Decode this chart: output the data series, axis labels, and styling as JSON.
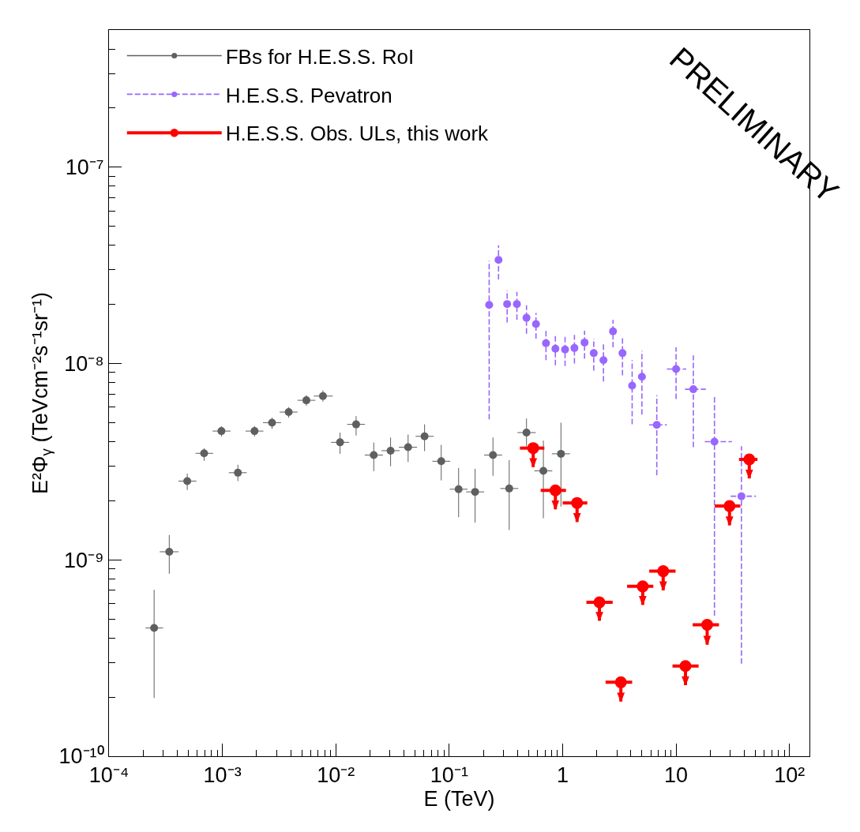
{
  "chart_data": {
    "type": "scatter",
    "xlabel": "E (TeV)",
    "ylabel": "E²Φ$_{γ}$ (TeVcm⁻²s⁻¹sr⁻¹)",
    "log": "xy",
    "xlim": [
      0.0001,
      150
    ],
    "ylim": [
      1e-10,
      5e-07
    ],
    "xticks": [
      {
        "value": 0.0001,
        "label": "10⁻⁴"
      },
      {
        "value": 0.001,
        "label": "10⁻³"
      },
      {
        "value": 0.01,
        "label": "10⁻²"
      },
      {
        "value": 0.1,
        "label": "10⁻¹"
      },
      1,
      10,
      {
        "value": 100,
        "label": "10²"
      },
      {
        "value": 0.0002,
        "label": null
      },
      {
        "value": 0.0003,
        "label": null
      },
      {
        "value": 0.0004,
        "label": null
      },
      {
        "value": 0.0005,
        "label": null
      },
      {
        "value": 0.0006,
        "label": null
      },
      {
        "value": 0.0007,
        "label": null
      },
      {
        "value": 0.0008,
        "label": null
      },
      {
        "value": 0.0009,
        "label": null
      },
      {
        "value": 0.002,
        "label": null
      },
      {
        "value": 0.003,
        "label": null
      },
      {
        "value": 0.004,
        "label": null
      },
      {
        "value": 0.005,
        "label": null
      },
      {
        "value": 0.006,
        "label": null
      },
      {
        "value": 0.007,
        "label": null
      },
      {
        "value": 0.008,
        "label": null
      },
      {
        "value": 0.009,
        "label": null
      },
      {
        "value": 0.02,
        "label": null
      },
      {
        "value": 0.03,
        "label": null
      },
      {
        "value": 0.04,
        "label": null
      },
      {
        "value": 0.05,
        "label": null
      },
      {
        "value": 0.06,
        "label": null
      },
      {
        "value": 0.07,
        "label": null
      },
      {
        "value": 0.08,
        "label": null
      },
      {
        "value": 0.09,
        "label": null
      },
      {
        "value": 0.2,
        "label": null
      },
      {
        "value": 0.3,
        "label": null
      },
      {
        "value": 0.4,
        "label": null
      },
      {
        "value": 0.5,
        "label": null
      },
      {
        "value": 0.6,
        "label": null
      },
      {
        "value": 0.7,
        "label": null
      },
      {
        "value": 0.8,
        "label": null
      },
      {
        "value": 0.9,
        "label": null
      },
      {
        "value": 2,
        "label": null
      },
      {
        "value": 3,
        "label": null
      },
      {
        "value": 4,
        "label": null
      },
      {
        "value": 5,
        "label": null
      },
      {
        "value": 6,
        "label": null
      },
      {
        "value": 7,
        "label": null
      },
      {
        "value": 8,
        "label": null
      },
      {
        "value": 9,
        "label": null
      },
      {
        "value": 20,
        "label": null
      },
      {
        "value": 30,
        "label": null
      },
      {
        "value": 40,
        "label": null
      },
      {
        "value": 50,
        "label": null
      },
      {
        "value": 60,
        "label": null
      },
      {
        "value": 70,
        "label": null
      },
      {
        "value": 80,
        "label": null
      },
      {
        "value": 90,
        "label": null
      }
    ],
    "yticks": [
      {
        "value": 1e-10,
        "label": "10⁻¹⁰"
      },
      {
        "value": 1e-09,
        "label": "10⁻⁹"
      },
      {
        "value": 1e-08,
        "label": "10⁻⁸"
      },
      {
        "value": 1e-07,
        "label": "10⁻⁷"
      },
      {
        "value": 2e-10,
        "label": null
      },
      {
        "value": 3e-10,
        "label": null
      },
      {
        "value": 4e-10,
        "label": null
      },
      {
        "value": 5e-10,
        "label": null
      },
      {
        "value": 6e-10,
        "label": null
      },
      {
        "value": 7e-10,
        "label": null
      },
      {
        "value": 8e-10,
        "label": null
      },
      {
        "value": 9e-10,
        "label": null
      },
      {
        "value": 2e-09,
        "label": null
      },
      {
        "value": 3e-09,
        "label": null
      },
      {
        "value": 4e-09,
        "label": null
      },
      {
        "value": 5e-09,
        "label": null
      },
      {
        "value": 6e-09,
        "label": null
      },
      {
        "value": 7e-09,
        "label": null
      },
      {
        "value": 8e-09,
        "label": null
      },
      {
        "value": 9e-09,
        "label": null
      },
      {
        "value": 2e-08,
        "label": null
      },
      {
        "value": 3e-08,
        "label": null
      },
      {
        "value": 4e-08,
        "label": null
      },
      {
        "value": 5e-08,
        "label": null
      },
      {
        "value": 6e-08,
        "label": null
      },
      {
        "value": 7e-08,
        "label": null
      },
      {
        "value": 8e-08,
        "label": null
      },
      {
        "value": 9e-08,
        "label": null
      },
      {
        "value": 2e-07,
        "label": null
      },
      {
        "value": 3e-07,
        "label": null
      },
      {
        "value": 4e-07,
        "label": null
      },
      {
        "value": 5e-07,
        "label": null
      }
    ],
    "legend": "top left",
    "marker": "circle",
    "annotations": [
      "PRELIMINARY"
    ],
    "series": [
      {
        "name": "FBs for H.E.S.S. RoI",
        "color": "#5f5f5f",
        "line_style": "solid",
        "x": [
          0.00025,
          0.00034,
          0.00049,
          0.00069,
          0.00098,
          0.00137,
          0.00192,
          0.00274,
          0.00384,
          0.0055,
          0.0077,
          0.0109,
          0.0151,
          0.0216,
          0.0304,
          0.0434,
          0.0606,
          0.085,
          0.121,
          0.169,
          0.243,
          0.338,
          0.48,
          0.676,
          0.966
        ],
        "values": [
          4.5e-10,
          1.1e-09,
          2.52e-09,
          3.49e-09,
          4.53e-09,
          2.78e-09,
          4.53e-09,
          5e-09,
          5.66e-09,
          6.5e-09,
          6.83e-09,
          3.97e-09,
          4.9e-09,
          3.42e-09,
          3.6e-09,
          3.75e-09,
          4.26e-09,
          3.18e-09,
          2.29e-09,
          2.22e-09,
          3.42e-09,
          2.31e-09,
          4.45e-09,
          2.84e-09,
          3.47e-09
        ],
        "errors": [
          [
            1.98e-10,
            7.04e-10
          ],
          [
            8.5e-10,
            1.34e-09
          ],
          [
            2.27e-09,
            2.75e-09
          ],
          [
            3.2e-09,
            3.7e-09
          ],
          [
            4.25e-09,
            4.8e-09
          ],
          [
            2.52e-09,
            3.05e-09
          ],
          [
            4.25e-09,
            4.8e-09
          ],
          [
            4.65e-09,
            5.3e-09
          ],
          [
            5.3e-09,
            6e-09
          ],
          [
            6.1e-09,
            6.9e-09
          ],
          [
            6.4e-09,
            7.3e-09
          ],
          [
            3.47e-09,
            4.45e-09
          ],
          [
            4.3e-09,
            5.4e-09
          ],
          [
            2.83e-09,
            3.96e-09
          ],
          [
            3e-09,
            4.2e-09
          ],
          [
            3.15e-09,
            4.35e-09
          ],
          [
            3.58e-09,
            4.9e-09
          ],
          [
            2.54e-09,
            3.85e-09
          ],
          [
            1.65e-09,
            2.94e-09
          ],
          [
            1.55e-09,
            2.91e-09
          ],
          [
            2.68e-09,
            4.2e-09
          ],
          [
            1.42e-09,
            3.22e-09
          ],
          [
            3.79e-09,
            5.25e-09
          ],
          [
            1.63e-09,
            4.05e-09
          ],
          [
            1.87e-09,
            5e-09
          ]
        ],
        "xerrors": [
          [
            0.00021,
            0.0003
          ],
          [
            0.00028,
            0.00041
          ],
          [
            0.00041,
            0.00059
          ],
          [
            0.00058,
            0.00083
          ],
          [
            0.00082,
            0.00118
          ],
          [
            0.00114,
            0.00164
          ],
          [
            0.0016,
            0.0023
          ],
          [
            0.00228,
            0.00329
          ],
          [
            0.0032,
            0.0046
          ],
          [
            0.0046,
            0.0066
          ],
          [
            0.0064,
            0.0094
          ],
          [
            0.0091,
            0.0131
          ],
          [
            0.0126,
            0.0181
          ],
          [
            0.018,
            0.026
          ],
          [
            0.0253,
            0.0365
          ],
          [
            0.036,
            0.052
          ],
          [
            0.0505,
            0.073
          ],
          [
            0.071,
            0.102
          ],
          [
            0.101,
            0.145
          ],
          [
            0.141,
            0.203
          ],
          [
            0.203,
            0.292
          ],
          [
            0.282,
            0.406
          ],
          [
            0.4,
            0.58
          ],
          [
            0.563,
            0.81
          ],
          [
            0.805,
            1.16
          ]
        ]
      },
      {
        "name": "H.E.S.S. Pevatron",
        "color": "#9966ff",
        "line_style": "dashed",
        "x": [
          0.225,
          0.272,
          0.324,
          0.395,
          0.48,
          0.582,
          0.713,
          0.863,
          1.05,
          1.27,
          1.56,
          1.88,
          2.29,
          2.78,
          3.37,
          4.1,
          5.0,
          6.76,
          10,
          14.2,
          21.8,
          37.7
        ],
        "values": [
          1.99e-08,
          3.37e-08,
          2.01e-08,
          2.01e-08,
          1.71e-08,
          1.59e-08,
          1.27e-08,
          1.19e-08,
          1.18e-08,
          1.2e-08,
          1.28e-08,
          1.13e-08,
          1.04e-08,
          1.46e-08,
          1.13e-08,
          7.72e-09,
          8.57e-09,
          4.87e-09,
          9.38e-09,
          7.4e-09,
          4e-09,
          2.11e-09
        ],
        "errors": [
          [
            5.2e-09,
            3.33e-08
          ],
          [
            2.68e-08,
            4e-08
          ],
          [
            1.62e-08,
            2.36e-08
          ],
          [
            1.67e-08,
            2.32e-08
          ],
          [
            1.42e-08,
            1.98e-08
          ],
          [
            1.34e-08,
            1.81e-08
          ],
          [
            1.04e-08,
            1.48e-08
          ],
          [
            9.8e-09,
            1.4e-08
          ],
          [
            9.7e-09,
            1.38e-08
          ],
          [
            1e-08,
            1.4e-08
          ],
          [
            1.06e-08,
            1.47e-08
          ],
          [
            9.2e-09,
            1.34e-08
          ],
          [
            8.1e-09,
            1.26e-08
          ],
          [
            1.21e-08,
            1.67e-08
          ],
          [
            8.7e-09,
            1.38e-08
          ],
          [
            4.9e-09,
            1.04e-08
          ],
          [
            5.5e-09,
            1.16e-08
          ],
          [
            2.7e-09,
            6.9e-09
          ],
          [
            6.6e-09,
            1.21e-08
          ],
          [
            3.75e-09,
            1.1e-08
          ],
          [
            5.2e-10,
            6.8e-09
          ],
          [
            2.96e-10,
            3.79e-09
          ]
        ],
        "xerrors": [
          null,
          null,
          null,
          null,
          null,
          null,
          null,
          null,
          null,
          null,
          null,
          null,
          null,
          null,
          null,
          null,
          null,
          [
            5.78,
            8.3
          ],
          [
            8.3,
            12.3
          ],
          [
            12.0,
            18.3
          ],
          [
            17.9,
            31.1
          ],
          [
            30.3,
            50.6
          ]
        ]
      },
      {
        "name": "H.E.S.S. Obs. ULs, this work",
        "color": "#ff0000",
        "line_style": "solid",
        "x": [
          0.55,
          0.863,
          1.34,
          2.11,
          3.26,
          5.08,
          7.7,
          12.1,
          18.8,
          29.6,
          44.2
        ],
        "values": [
          3.71e-09,
          2.26e-09,
          1.95e-09,
          6.08e-10,
          2.38e-10,
          7.33e-10,
          8.76e-10,
          2.88e-10,
          4.67e-10,
          1.88e-09,
          3.25e-09
        ],
        "errors": [
          [
            2.97e-09,
            3.71e-09
          ],
          [
            1.81e-09,
            2.26e-09
          ],
          [
            1.56e-09,
            1.95e-09
          ],
          [
            4.9e-10,
            6.08e-10
          ],
          [
            1.9e-10,
            2.38e-10
          ],
          [
            5.9e-10,
            7.33e-10
          ],
          [
            7e-10,
            8.76e-10
          ],
          [
            2.3e-10,
            2.88e-10
          ],
          [
            3.7e-10,
            4.67e-10
          ],
          [
            1.5e-09,
            1.88e-09
          ],
          [
            2.6e-09,
            3.25e-09
          ]
        ],
        "xerrors": [
          [
            0.42,
            0.69
          ],
          [
            0.64,
            1.07
          ],
          [
            1.0,
            1.65
          ],
          [
            1.62,
            2.76
          ],
          [
            2.39,
            4.1
          ],
          [
            3.7,
            6.3
          ],
          [
            5.8,
            9.9
          ],
          [
            9.3,
            15.8
          ],
          [
            14.0,
            23.9
          ],
          [
            21.9,
            36.9
          ],
          [
            35.9,
            52.2
          ]
        ]
      }
    ]
  }
}
